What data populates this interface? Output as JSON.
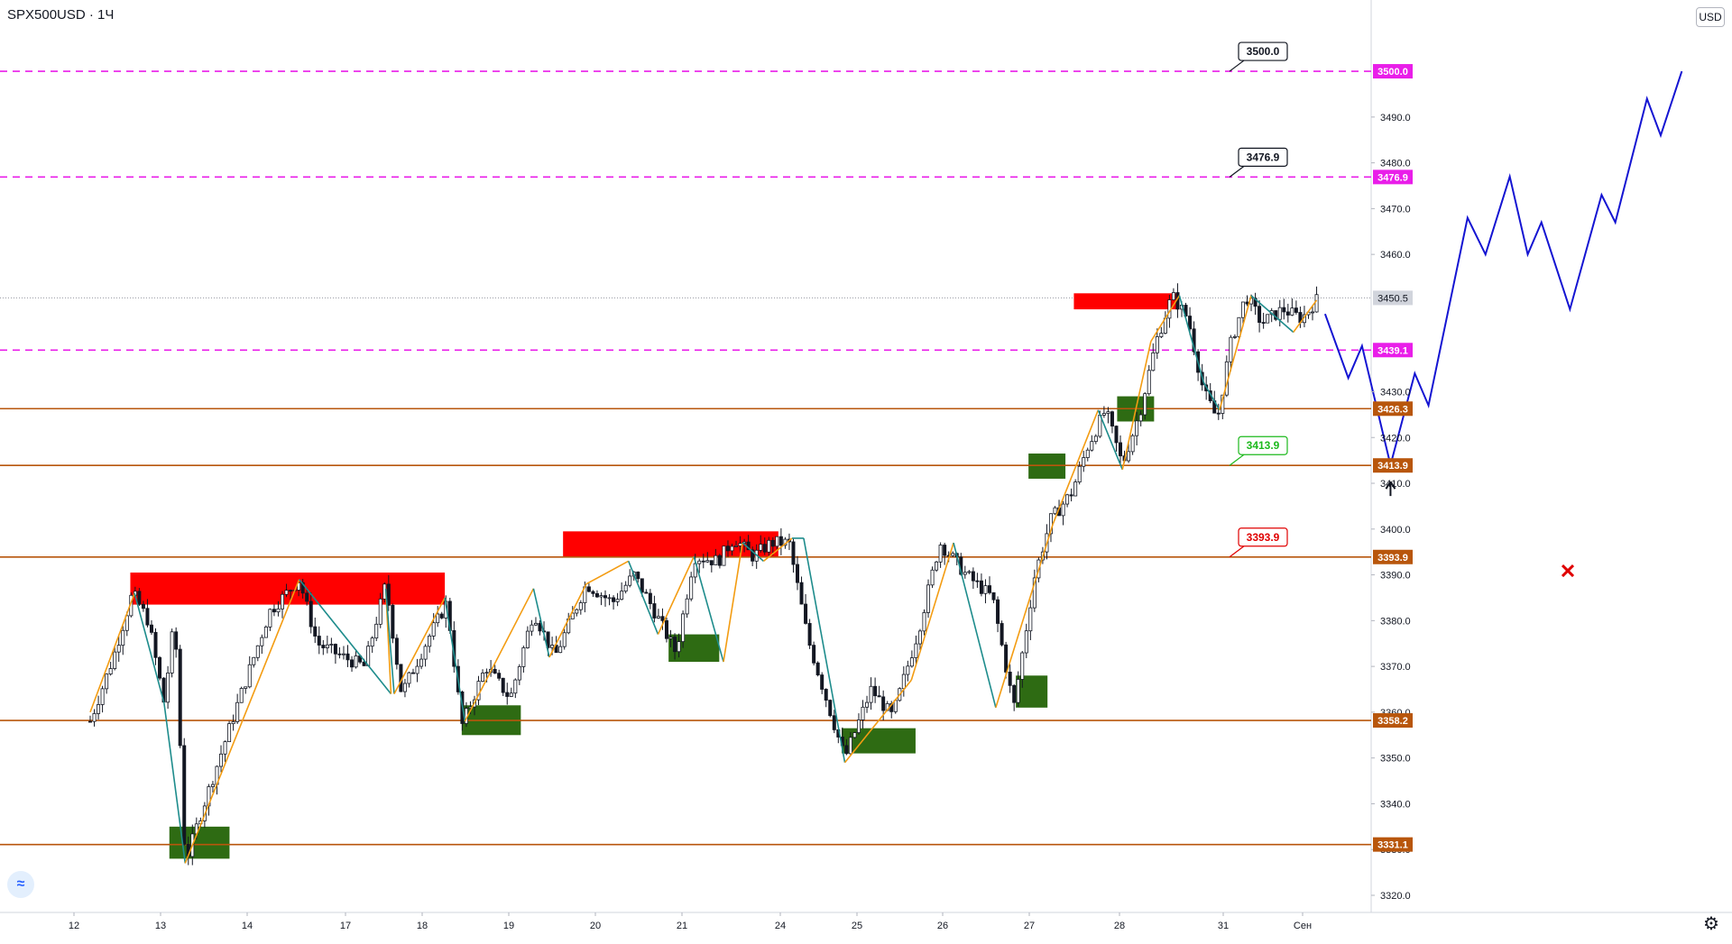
{
  "header": {
    "symbol": "SPX500USD · 1Ч",
    "currency": "USD"
  },
  "settings_icon": "gear-icon",
  "logo_icon": "tradingview-logo-icon",
  "colors": {
    "magenta_level": "#e91ee9",
    "orange_level": "#b8560c",
    "resistance_zone": "#ff0000",
    "support_zone": "#2e6b13",
    "forecast": "#1414d2",
    "zigzag_up": "#f39c12",
    "zigzag_down": "#1e8c8c",
    "candle": "#131722"
  },
  "chart_data": {
    "type": "line",
    "price_range": [
      3315,
      3510
    ],
    "y_ticks": [
      3320.0,
      3330.0,
      3340.0,
      3350.0,
      3360.0,
      3370.0,
      3380.0,
      3390.0,
      3400.0,
      3410.0,
      3420.0,
      3430.0,
      3460.0,
      3470.0,
      3480.0,
      3490.0
    ],
    "x_ticks": [
      "12",
      "13",
      "14",
      "17",
      "18",
      "19",
      "20",
      "21",
      "24",
      "25",
      "26",
      "27",
      "28",
      "31",
      "Сен"
    ],
    "levels": [
      {
        "price": 3500.0,
        "label": "3500.0",
        "style": "magenta-dashed"
      },
      {
        "price": 3476.9,
        "label": "3476.9",
        "style": "magenta-dashed"
      },
      {
        "price": 3439.1,
        "label": "3439.1",
        "style": "magenta-dashed"
      },
      {
        "price": 3426.3,
        "label": "3426.3",
        "style": "orange"
      },
      {
        "price": 3413.9,
        "label": "3413.9",
        "style": "orange"
      },
      {
        "price": 3393.9,
        "label": "3393.9",
        "style": "orange"
      },
      {
        "price": 3358.2,
        "label": "3358.2",
        "style": "orange"
      },
      {
        "price": 3331.1,
        "label": "3331.1",
        "style": "orange"
      }
    ],
    "last_price": {
      "price": 3450.5,
      "label": "3450.5"
    },
    "callouts": [
      {
        "label": "3500.0",
        "price": 3500.0,
        "color": "#131722"
      },
      {
        "label": "3476.9",
        "price": 3476.9,
        "color": "#131722"
      },
      {
        "label": "3413.9",
        "price": 3413.9,
        "color": "#1db91d"
      },
      {
        "label": "3393.9",
        "price": 3393.9,
        "color": "#e00000"
      }
    ],
    "resistance_zones": [
      {
        "t1": 0.38,
        "t2": 3.36,
        "top": 3390.5,
        "bottom": 3383.5
      },
      {
        "t1": 4.48,
        "t2": 6.52,
        "top": 3399.5,
        "bottom": 3394.0
      },
      {
        "t1": 9.32,
        "t2": 10.32,
        "top": 3451.5,
        "bottom": 3448.0
      }
    ],
    "support_zones": [
      {
        "t1": 0.75,
        "t2": 1.32,
        "top": 3335.0,
        "bottom": 3328.0
      },
      {
        "t1": 3.52,
        "t2": 4.08,
        "top": 3361.5,
        "bottom": 3355.0
      },
      {
        "t1": 5.48,
        "t2": 5.96,
        "top": 3377.0,
        "bottom": 3371.0
      },
      {
        "t1": 7.12,
        "t2": 7.82,
        "top": 3356.5,
        "bottom": 3351.0
      },
      {
        "t1": 8.77,
        "t2": 9.07,
        "top": 3368.0,
        "bottom": 3361.0
      },
      {
        "t1": 8.89,
        "t2": 9.24,
        "top": 3416.5,
        "bottom": 3411.0
      },
      {
        "t1": 9.73,
        "t2": 10.08,
        "top": 3429.0,
        "bottom": 3423.5
      }
    ],
    "candles": {
      "t_start": 0.0,
      "t_end": 10.78,
      "count": 180,
      "path": [
        [
          0.0,
          3358
        ],
        [
          0.22,
          3372
        ],
        [
          0.4,
          3386
        ],
        [
          0.55,
          3380
        ],
        [
          0.7,
          3362
        ],
        [
          0.8,
          3381
        ],
        [
          0.9,
          3327
        ],
        [
          1.05,
          3338
        ],
        [
          1.4,
          3362
        ],
        [
          1.7,
          3382
        ],
        [
          1.98,
          3389
        ],
        [
          2.15,
          3375
        ],
        [
          2.4,
          3372
        ],
        [
          2.6,
          3370
        ],
        [
          2.8,
          3388
        ],
        [
          2.95,
          3364
        ],
        [
          3.2,
          3376
        ],
        [
          3.38,
          3384
        ],
        [
          3.52,
          3357
        ],
        [
          3.75,
          3370
        ],
        [
          3.98,
          3363
        ],
        [
          4.2,
          3382
        ],
        [
          4.4,
          3372
        ],
        [
          4.7,
          3388
        ],
        [
          4.95,
          3384
        ],
        [
          5.15,
          3390
        ],
        [
          5.3,
          3384
        ],
        [
          5.55,
          3373
        ],
        [
          5.72,
          3394
        ],
        [
          5.95,
          3393
        ],
        [
          6.1,
          3398
        ],
        [
          6.28,
          3394
        ],
        [
          6.45,
          3397
        ],
        [
          6.62,
          3397
        ],
        [
          6.8,
          3376
        ],
        [
          7.0,
          3361
        ],
        [
          7.15,
          3350
        ],
        [
          7.4,
          3365
        ],
        [
          7.6,
          3359
        ],
        [
          7.85,
          3378
        ],
        [
          8.05,
          3397
        ],
        [
          8.3,
          3390
        ],
        [
          8.55,
          3385
        ],
        [
          8.75,
          3361
        ],
        [
          8.95,
          3390
        ],
        [
          9.1,
          3402
        ],
        [
          9.3,
          3408
        ],
        [
          9.45,
          3418
        ],
        [
          9.62,
          3426
        ],
        [
          9.78,
          3414
        ],
        [
          9.95,
          3426
        ],
        [
          10.1,
          3441
        ],
        [
          10.25,
          3451
        ],
        [
          10.4,
          3446
        ],
        [
          10.55,
          3430
        ],
        [
          10.68,
          3424
        ],
        [
          10.8,
          3440
        ],
        [
          10.95,
          3451
        ],
        [
          11.1,
          3445
        ],
        [
          11.3,
          3448
        ],
        [
          11.48,
          3446
        ],
        [
          11.62,
          3450
        ]
      ]
    },
    "zigzag": [
      [
        0.0,
        3360
      ],
      [
        0.42,
        3386
      ],
      [
        0.7,
        3362
      ],
      [
        0.9,
        3327
      ],
      [
        1.98,
        3389
      ],
      [
        2.85,
        3364
      ],
      [
        2.8,
        3387
      ],
      [
        2.88,
        3364
      ],
      [
        3.36,
        3385
      ],
      [
        3.55,
        3358
      ],
      [
        4.2,
        3387
      ],
      [
        4.35,
        3372
      ],
      [
        4.7,
        3388
      ],
      [
        5.1,
        3393
      ],
      [
        5.38,
        3377
      ],
      [
        5.72,
        3394
      ],
      [
        6.0,
        3371
      ],
      [
        6.18,
        3397
      ],
      [
        6.38,
        3393
      ],
      [
        6.65,
        3398
      ],
      [
        6.76,
        3398
      ],
      [
        7.15,
        3349
      ],
      [
        7.78,
        3367
      ],
      [
        8.18,
        3397
      ],
      [
        8.58,
        3361
      ],
      [
        9.12,
        3401
      ],
      [
        9.55,
        3426
      ],
      [
        9.78,
        3413
      ],
      [
        10.05,
        3441
      ],
      [
        10.32,
        3451
      ],
      [
        10.55,
        3432
      ],
      [
        10.7,
        3426
      ],
      [
        11.0,
        3451
      ],
      [
        11.4,
        3443
      ],
      [
        11.62,
        3450
      ]
    ],
    "forecast": [
      [
        11.7,
        3447
      ],
      [
        11.92,
        3433
      ],
      [
        12.05,
        3440
      ],
      [
        12.32,
        3414
      ],
      [
        12.55,
        3434
      ],
      [
        12.68,
        3427
      ],
      [
        13.05,
        3468
      ],
      [
        13.22,
        3460
      ],
      [
        13.45,
        3477
      ],
      [
        13.62,
        3460
      ],
      [
        13.75,
        3467
      ],
      [
        14.02,
        3448
      ],
      [
        14.32,
        3473
      ],
      [
        14.45,
        3467
      ],
      [
        14.75,
        3494
      ],
      [
        14.88,
        3486
      ],
      [
        15.08,
        3500
      ]
    ],
    "markers": [
      {
        "type": "arrow-up",
        "t": 12.32,
        "price": 3408
      },
      {
        "type": "cross",
        "t": 14.0,
        "price": 3390.9
      }
    ]
  }
}
